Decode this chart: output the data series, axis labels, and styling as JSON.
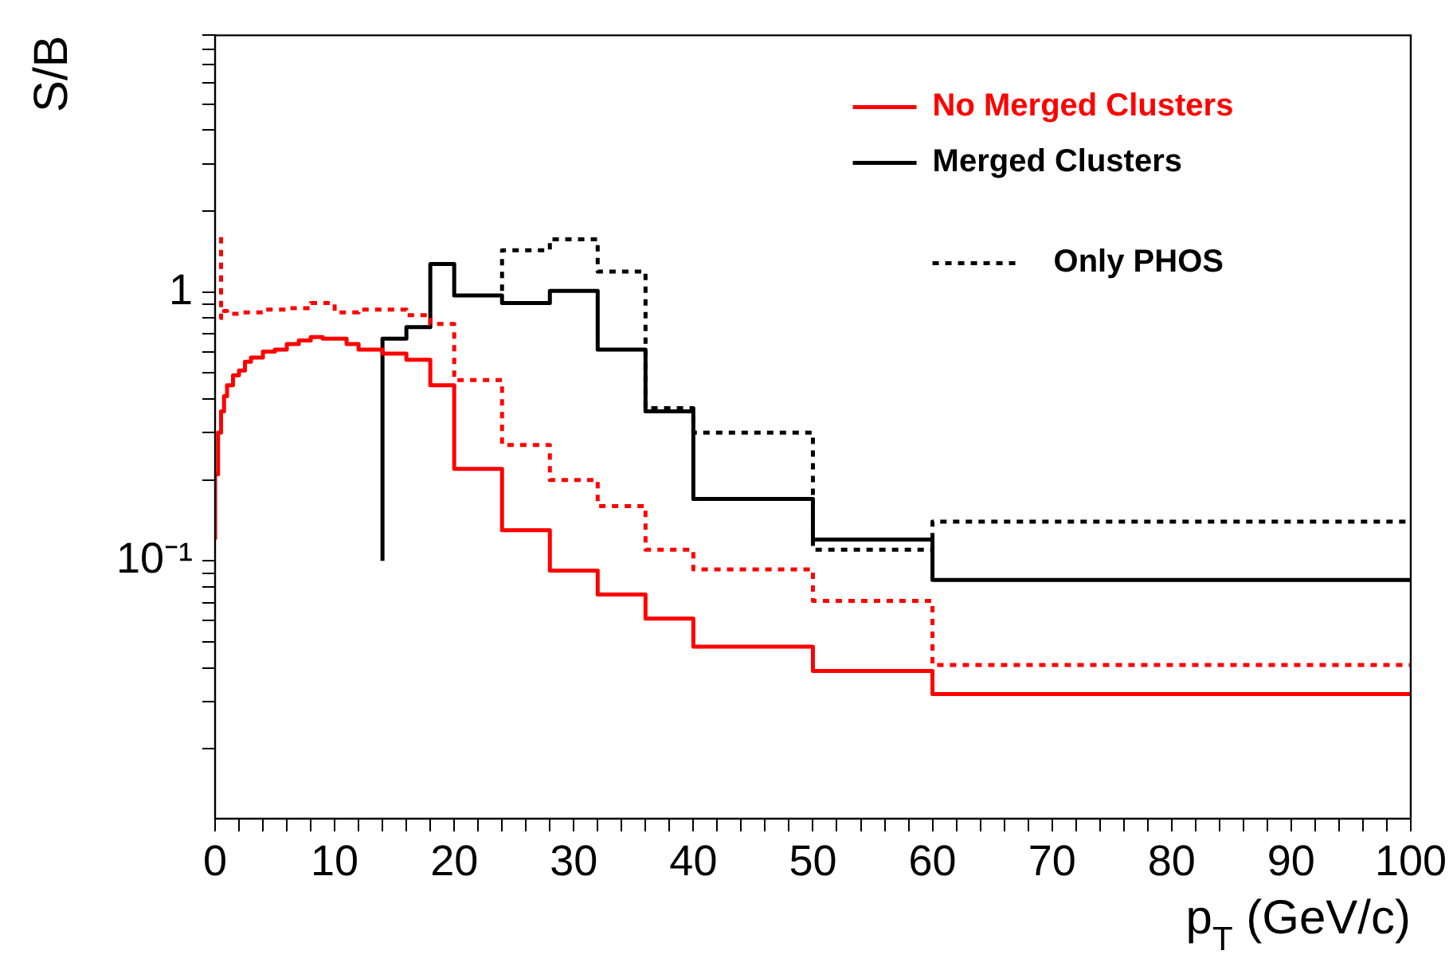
{
  "chart_data": {
    "type": "step",
    "xlabel": "p$_{T}$ (GeV/c)",
    "ylabel": "S/B",
    "log": "y",
    "legend": "top right",
    "marker": "none",
    "xlim": [
      0,
      100
    ],
    "ylim": [
      0.011,
      9
    ],
    "xticks": [
      0,
      {
        "value": 2,
        "label": null
      },
      {
        "value": 4,
        "label": null
      },
      {
        "value": 6,
        "label": null
      },
      {
        "value": 8,
        "label": null
      },
      10,
      {
        "value": 12,
        "label": null
      },
      {
        "value": 14,
        "label": null
      },
      {
        "value": 16,
        "label": null
      },
      {
        "value": 18,
        "label": null
      },
      20,
      {
        "value": 22,
        "label": null
      },
      {
        "value": 24,
        "label": null
      },
      {
        "value": 26,
        "label": null
      },
      {
        "value": 28,
        "label": null
      },
      30,
      {
        "value": 32,
        "label": null
      },
      {
        "value": 34,
        "label": null
      },
      {
        "value": 36,
        "label": null
      },
      {
        "value": 38,
        "label": null
      },
      40,
      {
        "value": 42,
        "label": null
      },
      {
        "value": 44,
        "label": null
      },
      {
        "value": 46,
        "label": null
      },
      {
        "value": 48,
        "label": null
      },
      50,
      {
        "value": 52,
        "label": null
      },
      {
        "value": 54,
        "label": null
      },
      {
        "value": 56,
        "label": null
      },
      {
        "value": 58,
        "label": null
      },
      60,
      {
        "value": 62,
        "label": null
      },
      {
        "value": 64,
        "label": null
      },
      {
        "value": 66,
        "label": null
      },
      {
        "value": 68,
        "label": null
      },
      70,
      {
        "value": 72,
        "label": null
      },
      {
        "value": 74,
        "label": null
      },
      {
        "value": 76,
        "label": null
      },
      {
        "value": 78,
        "label": null
      },
      80,
      {
        "value": 82,
        "label": null
      },
      {
        "value": 84,
        "label": null
      },
      {
        "value": 86,
        "label": null
      },
      {
        "value": 88,
        "label": null
      },
      90,
      {
        "value": 92,
        "label": null
      },
      {
        "value": 94,
        "label": null
      },
      {
        "value": 96,
        "label": null
      },
      {
        "value": 98,
        "label": null
      },
      100
    ],
    "yticks": [
      {
        "value": 0.02,
        "label": null
      },
      {
        "value": 0.03,
        "label": null
      },
      {
        "value": 0.04,
        "label": null
      },
      {
        "value": 0.05,
        "label": null
      },
      {
        "value": 0.06,
        "label": null
      },
      {
        "value": 0.07,
        "label": null
      },
      {
        "value": 0.08,
        "label": null
      },
      {
        "value": 0.09,
        "label": null
      },
      {
        "value": 0.1,
        "label": "10⁻¹"
      },
      {
        "value": 0.2,
        "label": null
      },
      {
        "value": 0.3,
        "label": null
      },
      {
        "value": 0.4,
        "label": null
      },
      {
        "value": 0.5,
        "label": null
      },
      {
        "value": 0.6,
        "label": null
      },
      {
        "value": 0.7,
        "label": null
      },
      {
        "value": 0.8,
        "label": null
      },
      {
        "value": 0.9,
        "label": null
      },
      1,
      {
        "value": 2,
        "label": null
      },
      {
        "value": 3,
        "label": null
      },
      {
        "value": 4,
        "label": null
      },
      {
        "value": 5,
        "label": null
      },
      {
        "value": 6,
        "label": null
      },
      {
        "value": 7,
        "label": null
      },
      {
        "value": 8,
        "label": null
      },
      {
        "value": 9,
        "label": null
      }
    ],
    "series": [
      {
        "name": "No Merged Clusters",
        "color": "#ff0000",
        "line_style": "solid",
        "x": [
          0,
          0.25,
          0.5,
          0.75,
          1,
          1.5,
          2,
          2.5,
          3,
          4,
          5,
          6,
          7,
          8,
          9,
          10,
          11,
          12,
          14,
          16,
          18,
          20,
          24,
          28,
          32,
          36,
          40,
          50,
          60,
          80,
          100
        ],
        "values": [
          0.12,
          0.21,
          0.3,
          0.36,
          0.41,
          0.45,
          0.49,
          0.51,
          0.55,
          0.57,
          0.6,
          0.61,
          0.64,
          0.66,
          0.68,
          0.67,
          0.67,
          0.64,
          0.61,
          0.59,
          0.56,
          0.45,
          0.22,
          0.13,
          0.092,
          0.075,
          0.061,
          0.048,
          0.039,
          0.032,
          0.032
        ]
      },
      {
        "color": "#ff0000",
        "line_style": "dotted",
        "x": [
          0.5,
          0.75,
          1,
          2,
          4,
          6,
          8,
          10,
          12,
          16,
          18,
          20,
          24,
          28,
          32,
          36,
          40,
          50,
          60,
          80,
          100
        ],
        "values": [
          1.6,
          0.8,
          0.85,
          0.83,
          0.84,
          0.86,
          0.87,
          0.91,
          0.84,
          0.86,
          0.82,
          0.76,
          0.47,
          0.27,
          0.2,
          0.16,
          0.11,
          0.093,
          0.071,
          0.041,
          0.041
        ]
      },
      {
        "name": "Merged Clusters",
        "color": "#000000",
        "line_style": "solid",
        "x": [
          14,
          16,
          18,
          20,
          24,
          28,
          32,
          36,
          40,
          50,
          60,
          80,
          100
        ],
        "values": [
          0.1,
          0.67,
          0.74,
          1.27,
          0.97,
          0.91,
          1.01,
          0.61,
          0.36,
          0.17,
          0.12,
          0.085,
          0.085
        ]
      },
      {
        "name": "Only PHOS",
        "color": "#000000",
        "line_style": "dotted",
        "x": [
          24,
          28,
          32,
          36,
          40,
          50,
          60,
          80,
          100
        ],
        "values": [
          1.01,
          1.43,
          1.57,
          1.19,
          0.37,
          0.3,
          0.11,
          0.14,
          0.14
        ]
      }
    ]
  }
}
